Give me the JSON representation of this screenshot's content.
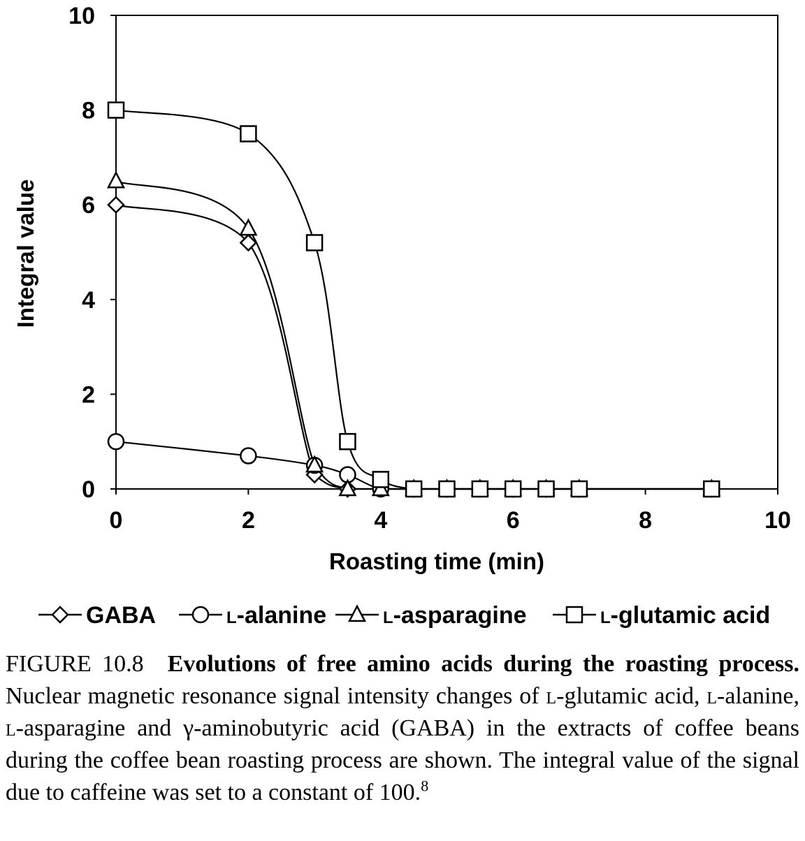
{
  "chart_data": {
    "type": "line",
    "xlabel": "Roasting time (min)",
    "ylabel": "Integral value",
    "xlim": [
      0,
      10
    ],
    "ylim": [
      0,
      10
    ],
    "xticks": [
      "0",
      "2",
      "4",
      "6",
      "8",
      "10"
    ],
    "yticks": [
      "0",
      "2",
      "4",
      "6",
      "8",
      "10"
    ],
    "grid": false,
    "legend_position": "bottom",
    "series": [
      {
        "name_prefix": "",
        "name_main": "GABA",
        "marker": "diamond",
        "points": [
          [
            0,
            6.0
          ],
          [
            2,
            5.2
          ],
          [
            3,
            0.3
          ],
          [
            3.5,
            0.0
          ],
          [
            4,
            0.0
          ],
          [
            4.5,
            0.0
          ],
          [
            5,
            0.0
          ],
          [
            5.5,
            0.0
          ],
          [
            6,
            0.0
          ],
          [
            6.5,
            0.0
          ],
          [
            7,
            0.0
          ],
          [
            9,
            0.0
          ]
        ]
      },
      {
        "name_prefix": "l",
        "name_main": "-alanine",
        "marker": "circle",
        "points": [
          [
            0,
            1.0
          ],
          [
            2,
            0.7
          ],
          [
            3,
            0.5
          ],
          [
            3.5,
            0.3
          ],
          [
            4,
            0.0
          ],
          [
            4.5,
            0.0
          ],
          [
            5,
            0.0
          ],
          [
            5.5,
            0.0
          ],
          [
            6,
            0.0
          ],
          [
            6.5,
            0.0
          ],
          [
            7,
            0.0
          ],
          [
            9,
            0.0
          ]
        ]
      },
      {
        "name_prefix": "l",
        "name_main": "-asparagine",
        "marker": "triangle",
        "points": [
          [
            0,
            6.5
          ],
          [
            2,
            5.5
          ],
          [
            3,
            0.5
          ],
          [
            3.5,
            0.0
          ],
          [
            4,
            0.0
          ],
          [
            4.5,
            0.0
          ],
          [
            5,
            0.0
          ],
          [
            5.5,
            0.0
          ],
          [
            6,
            0.0
          ],
          [
            6.5,
            0.0
          ],
          [
            7,
            0.0
          ],
          [
            9,
            0.0
          ]
        ]
      },
      {
        "name_prefix": "l",
        "name_main": "-glutamic acid",
        "marker": "square",
        "points": [
          [
            0,
            8.0
          ],
          [
            2,
            7.5
          ],
          [
            3,
            5.2
          ],
          [
            3.5,
            1.0
          ],
          [
            4,
            0.2
          ],
          [
            4.5,
            0.0
          ],
          [
            5,
            0.0
          ],
          [
            5.5,
            0.0
          ],
          [
            6,
            0.0
          ],
          [
            6.5,
            0.0
          ],
          [
            7,
            0.0
          ],
          [
            9,
            0.0
          ]
        ]
      }
    ]
  },
  "caption": {
    "label": "FIGURE 10.8",
    "title": "Evolutions of free amino acids during the roasting process.",
    "body_parts": [
      " Nuclear magnetic resonance signal intensity changes of ",
      "l",
      "-glutamic acid, ",
      "l",
      "-alanine, ",
      "l",
      "-asparagine and γ-aminobutyric acid (GABA) in the extracts of coffee beans during the coffee bean roasting process are shown. The integral value of the signal due to caffeine was set to a constant of 100."
    ],
    "reference": "8"
  }
}
